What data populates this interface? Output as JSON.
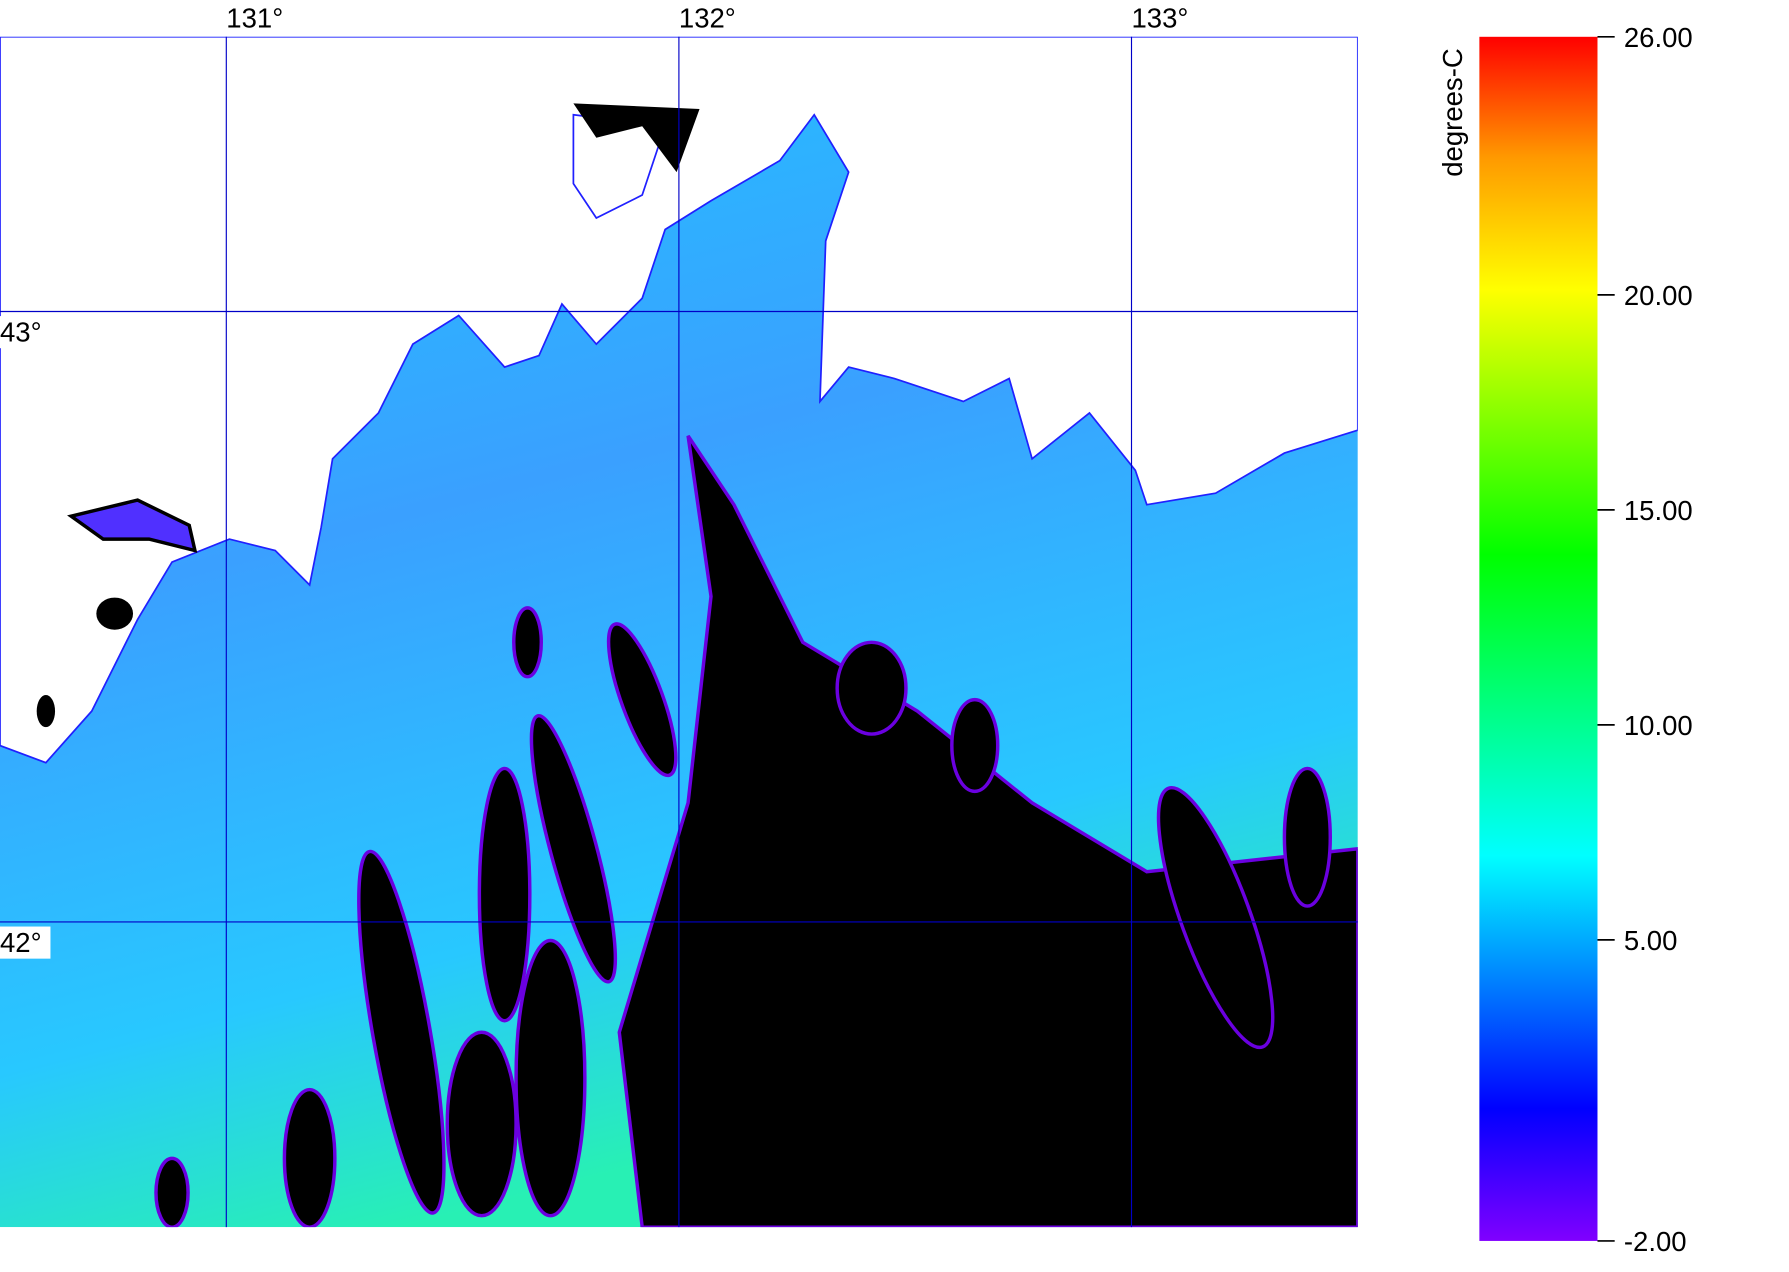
{
  "map": {
    "lonlim": [
      130.5,
      133.5
    ],
    "latlim": [
      41.5,
      43.45
    ],
    "lon_ticks": [
      {
        "value": 131,
        "label": "131°"
      },
      {
        "value": 132,
        "label": "132°"
      },
      {
        "value": 133,
        "label": "133°"
      }
    ],
    "lat_ticks": [
      {
        "value": 43,
        "label": "43°"
      },
      {
        "value": 42,
        "label": "42°"
      }
    ],
    "grid_color": "#0000c8",
    "colorbar": {
      "label": "degrees-C",
      "lim": [
        -2,
        26
      ],
      "ticks": [
        {
          "value": 26,
          "label": "26.00"
        },
        {
          "value": 20,
          "label": "20.00"
        },
        {
          "value": 15,
          "label": "15.00"
        },
        {
          "value": 10,
          "label": "10.00"
        },
        {
          "value": 5,
          "label": "5.00"
        },
        {
          "value": -2,
          "label": "-2.00"
        }
      ]
    }
  }
}
